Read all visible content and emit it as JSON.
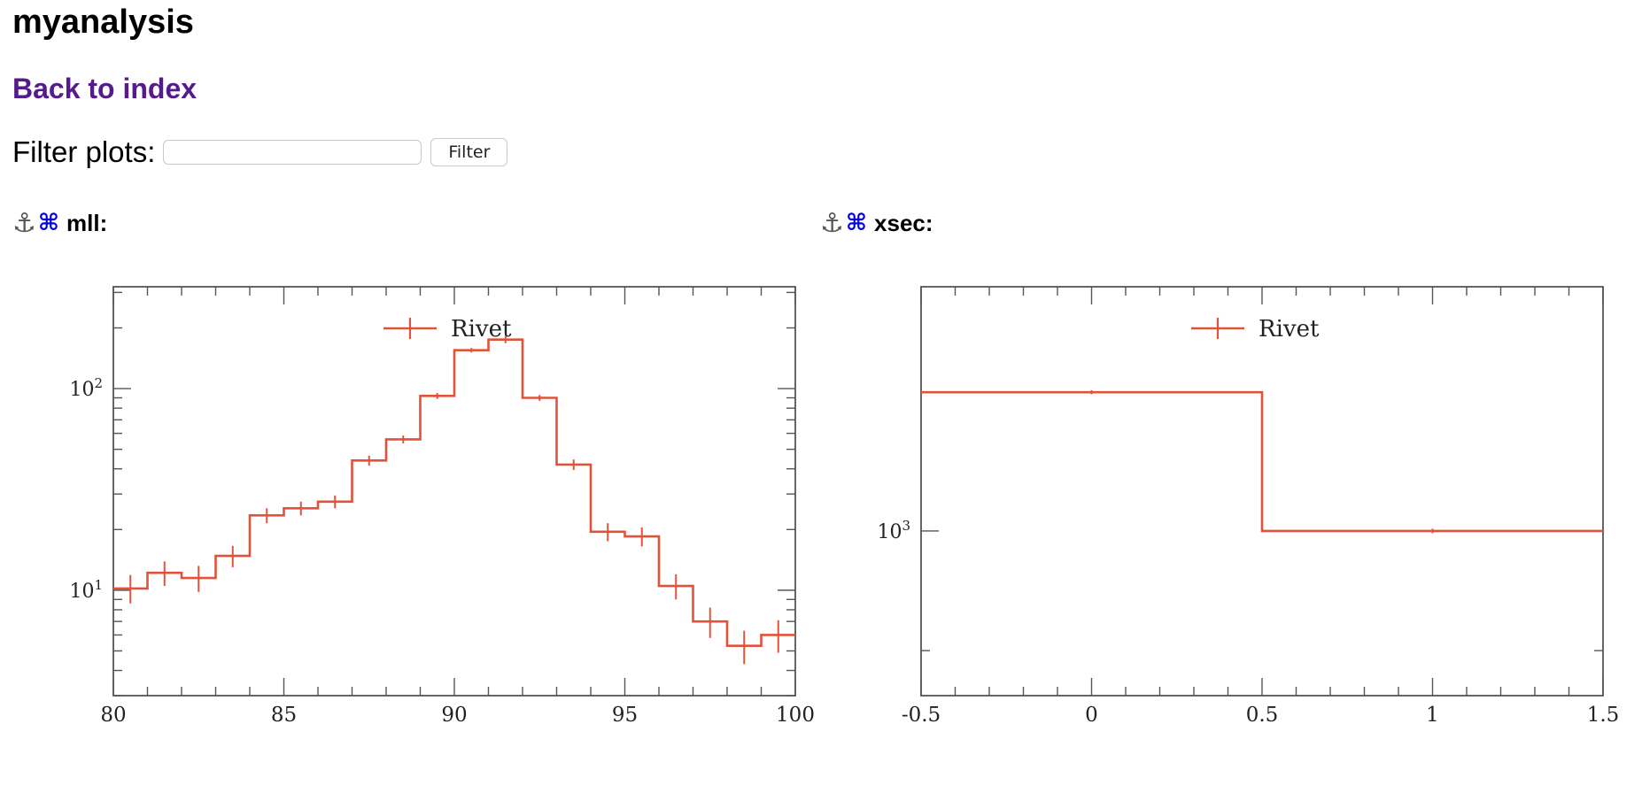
{
  "page": {
    "title": "myanalysis",
    "back_link": "Back to index",
    "filter": {
      "label": "Filter plots:",
      "input_value": "",
      "placeholder": "",
      "button_label": "Filter"
    }
  },
  "plots": [
    {
      "anchor_icon": "⚓",
      "link_icon": "⌘",
      "name": "mll:"
    },
    {
      "anchor_icon": "⚓",
      "link_icon": "⌘",
      "name": "xsec:"
    }
  ],
  "colors": {
    "series": "#e0533a",
    "link": "#551a8b",
    "plot_link": "#0000ee"
  },
  "chart_data": [
    {
      "type": "line",
      "style": "step-histogram",
      "title": "",
      "xlabel": "",
      "ylabel": "",
      "legend": {
        "entries": [
          "Rivet"
        ],
        "placement": "top"
      },
      "xlim": [
        80,
        100
      ],
      "ylim": [
        3,
        320
      ],
      "yscale": "log",
      "xticks": [
        80,
        85,
        90,
        95,
        100
      ],
      "xtick_labels": [
        "80",
        "85",
        "90",
        "95",
        "100"
      ],
      "yticks": [
        10,
        100
      ],
      "ytick_base": "10",
      "ytick_exponents": [
        "1",
        "2"
      ],
      "grid": false,
      "series": [
        {
          "name": "Rivet",
          "bin_edges": [
            80,
            81,
            82,
            83,
            84,
            85,
            86,
            87,
            88,
            89,
            90,
            91,
            92,
            93,
            94,
            95,
            96,
            97,
            98,
            99,
            100
          ],
          "values": [
            10.2,
            12.2,
            11.5,
            14.8,
            23.5,
            25.5,
            27.5,
            44,
            56,
            92,
            155,
            175,
            90,
            42,
            19.5,
            18.5,
            10.5,
            7,
            5.3,
            6
          ],
          "err_lo": [
            8.6,
            10.5,
            9.8,
            13,
            21.5,
            23.5,
            25.5,
            41.5,
            53.5,
            89,
            151,
            168,
            87,
            39.5,
            17.5,
            16.5,
            9,
            5.8,
            4.3,
            4.9
          ],
          "err_hi": [
            11.9,
            13.9,
            13.2,
            16.6,
            25.5,
            27.5,
            29.5,
            46.5,
            58.5,
            95,
            159,
            182,
            93,
            44.5,
            21.5,
            20.5,
            12,
            8.2,
            6.3,
            7.1
          ]
        }
      ]
    },
    {
      "type": "line",
      "style": "step-histogram",
      "title": "",
      "xlabel": "",
      "ylabel": "",
      "legend": {
        "entries": [
          "Rivet"
        ],
        "placement": "top"
      },
      "xlim": [
        -0.5,
        1.5
      ],
      "ylim": [
        865,
        1240
      ],
      "yscale": "log",
      "xticks": [
        -0.5,
        0,
        0.5,
        1,
        1.5
      ],
      "xtick_labels": [
        "-0.5",
        "0",
        "0.5",
        "1",
        "1.5"
      ],
      "yticks": [
        1000
      ],
      "ytick_base": "10",
      "ytick_exponents": [
        "3"
      ],
      "grid": false,
      "series": [
        {
          "name": "Rivet",
          "bin_edges": [
            -0.5,
            0.5,
            1.5
          ],
          "values": [
            1130,
            1000
          ],
          "err_lo": [
            1128,
            998
          ],
          "err_hi": [
            1132,
            1002
          ]
        }
      ]
    }
  ]
}
